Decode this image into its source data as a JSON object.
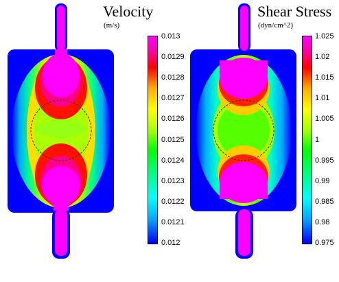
{
  "velocity": {
    "title": "Velocity",
    "unit": "(m/s)",
    "ticks": [
      "0.013",
      "0.0129",
      "0.0128",
      "0.0127",
      "0.0126",
      "0.0125",
      "0.0124",
      "0.0123",
      "0.0122",
      "0.0121",
      "0.012"
    ]
  },
  "shear": {
    "title": "Shear Stress",
    "unit": "(dyn/cm^2)",
    "ticks": [
      "1.025",
      "1.02",
      "1.015",
      "1.01",
      "1.005",
      "1",
      "0.995",
      "0.99",
      "0.985",
      "0.98",
      "0.975"
    ]
  },
  "colors": {
    "background_field": "#0000ff",
    "max": "#ff00ff",
    "min": "#0000ff"
  }
}
